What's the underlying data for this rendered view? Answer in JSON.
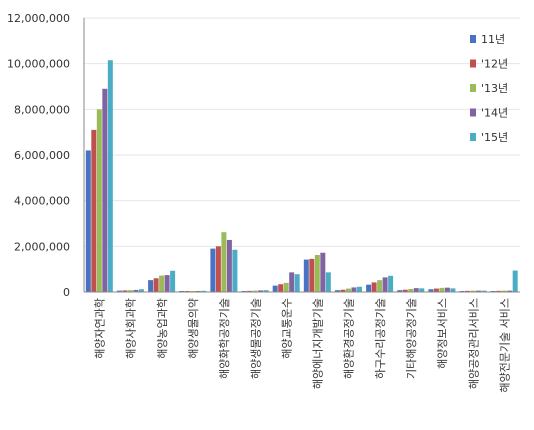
{
  "chart_data": {
    "type": "bar",
    "categories": [
      "해양자연과학",
      "해양사회과학",
      "해양농업과학",
      "해양생물의약",
      "해양화학공정기술",
      "해양생물공정기술",
      "해양교통운수",
      "해양에너지개발기술",
      "해양환경공정기술",
      "하구수리공정기술",
      "기타해양공정기술",
      "해양정보서비스",
      "해양공정관리서비스",
      "해양전문기술 서비스"
    ],
    "series": [
      {
        "name": "11년",
        "color": "#4a72c4",
        "values": [
          6200000,
          60000,
          520000,
          40000,
          1900000,
          40000,
          280000,
          1420000,
          80000,
          320000,
          80000,
          120000,
          40000,
          40000
        ]
      },
      {
        "name": "'12년",
        "color": "#c0504d",
        "values": [
          7100000,
          70000,
          600000,
          40000,
          2000000,
          50000,
          340000,
          1450000,
          100000,
          420000,
          100000,
          150000,
          50000,
          50000
        ]
      },
      {
        "name": "'13년",
        "color": "#9bbb59",
        "values": [
          8000000,
          80000,
          720000,
          40000,
          2620000,
          60000,
          400000,
          1620000,
          150000,
          520000,
          130000,
          180000,
          60000,
          60000
        ]
      },
      {
        "name": "'14년",
        "color": "#8064a2",
        "values": [
          8900000,
          90000,
          740000,
          40000,
          2280000,
          70000,
          860000,
          1720000,
          200000,
          640000,
          170000,
          190000,
          60000,
          60000
        ]
      },
      {
        "name": "'15년",
        "color": "#4bacc6",
        "values": [
          10150000,
          120000,
          930000,
          50000,
          1850000,
          80000,
          780000,
          860000,
          230000,
          710000,
          160000,
          160000,
          60000,
          940000
        ]
      }
    ],
    "yticks": [
      "0",
      "2,000,000",
      "4,000,000",
      "6,000,000",
      "8,000,000",
      "10,000,000",
      "12,000,000"
    ],
    "ylim": [
      0,
      12000000
    ],
    "grid": true,
    "legend": "right"
  }
}
